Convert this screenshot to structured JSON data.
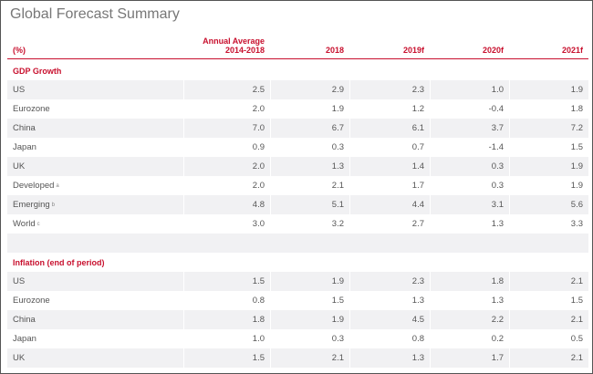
{
  "header": {
    "title": "Global Forecast Summary"
  },
  "table": {
    "columns": [
      "(%)",
      [
        "Annual Average",
        "2014-2018"
      ],
      "2018",
      "2019f",
      "2020f",
      "2021f"
    ],
    "sections": [
      {
        "title": "GDP Growth",
        "rows": [
          {
            "label": "US",
            "values": [
              "2.5",
              "2.9",
              "2.3",
              "1.0",
              "1.9"
            ]
          },
          {
            "label": "Eurozone",
            "values": [
              "2.0",
              "1.9",
              "1.2",
              "-0.4",
              "1.8"
            ]
          },
          {
            "label": "China",
            "values": [
              "7.0",
              "6.7",
              "6.1",
              "3.7",
              "7.2"
            ]
          },
          {
            "label": "Japan",
            "values": [
              "0.9",
              "0.3",
              "0.7",
              "-1.4",
              "1.5"
            ]
          },
          {
            "label": "UK",
            "values": [
              "2.0",
              "1.3",
              "1.4",
              "0.3",
              "1.9"
            ]
          },
          {
            "label": "Developed",
            "note": "a",
            "values": [
              "2.0",
              "2.1",
              "1.7",
              "0.3",
              "1.9"
            ]
          },
          {
            "label": "Emerging",
            "note": "b",
            "values": [
              "4.8",
              "5.1",
              "4.4",
              "3.1",
              "5.6"
            ]
          },
          {
            "label": "World",
            "note": "c",
            "values": [
              "3.0",
              "3.2",
              "2.7",
              "1.3",
              "3.3"
            ]
          }
        ]
      },
      {
        "title": "Inflation (end of period)",
        "rows": [
          {
            "label": "US",
            "values": [
              "1.5",
              "1.9",
              "2.3",
              "1.8",
              "2.1"
            ]
          },
          {
            "label": "Eurozone",
            "values": [
              "0.8",
              "1.5",
              "1.3",
              "1.3",
              "1.5"
            ]
          },
          {
            "label": "China",
            "values": [
              "1.8",
              "1.9",
              "4.5",
              "2.2",
              "2.1"
            ]
          },
          {
            "label": "Japan",
            "values": [
              "1.0",
              "0.3",
              "0.8",
              "0.2",
              "0.5"
            ]
          },
          {
            "label": "UK",
            "values": [
              "1.5",
              "2.1",
              "1.3",
              "1.7",
              "2.1"
            ]
          }
        ]
      }
    ]
  }
}
